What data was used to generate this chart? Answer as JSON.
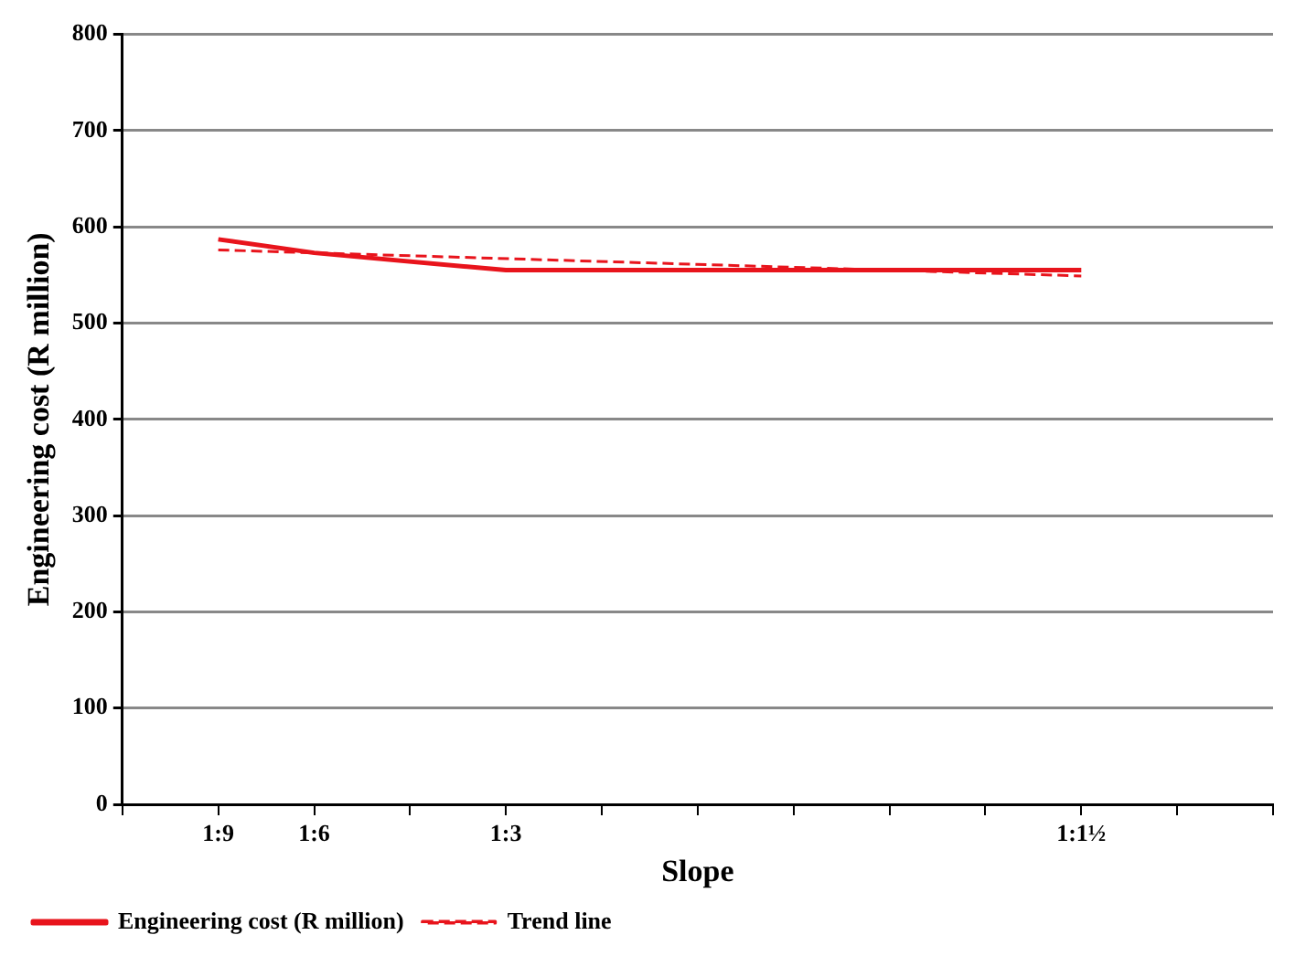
{
  "chart_data": {
    "type": "line",
    "xlabel": "Slope",
    "ylabel": "Engineering cost (R million)",
    "categories": [
      null,
      "1:9",
      "1:6",
      null,
      "1:3",
      null,
      null,
      null,
      null,
      null,
      "1:1½",
      null,
      null
    ],
    "ylim": [
      0,
      800
    ],
    "yticks": [
      0,
      100,
      200,
      300,
      400,
      500,
      600,
      700,
      800
    ],
    "grid": "y",
    "legend": "bottom left",
    "marker": "none",
    "series": [
      {
        "name": "Engineering cost (R million)",
        "color": "#e8141c",
        "line_style": "solid",
        "values": [
          null,
          587,
          573,
          null,
          555,
          null,
          null,
          null,
          null,
          null,
          555,
          null,
          null
        ]
      },
      {
        "name": "Trend line",
        "color": "#e8141c",
        "line_style": "dashed",
        "values": [
          null,
          576,
          null,
          null,
          null,
          null,
          null,
          null,
          null,
          null,
          549,
          null,
          null
        ]
      }
    ]
  }
}
